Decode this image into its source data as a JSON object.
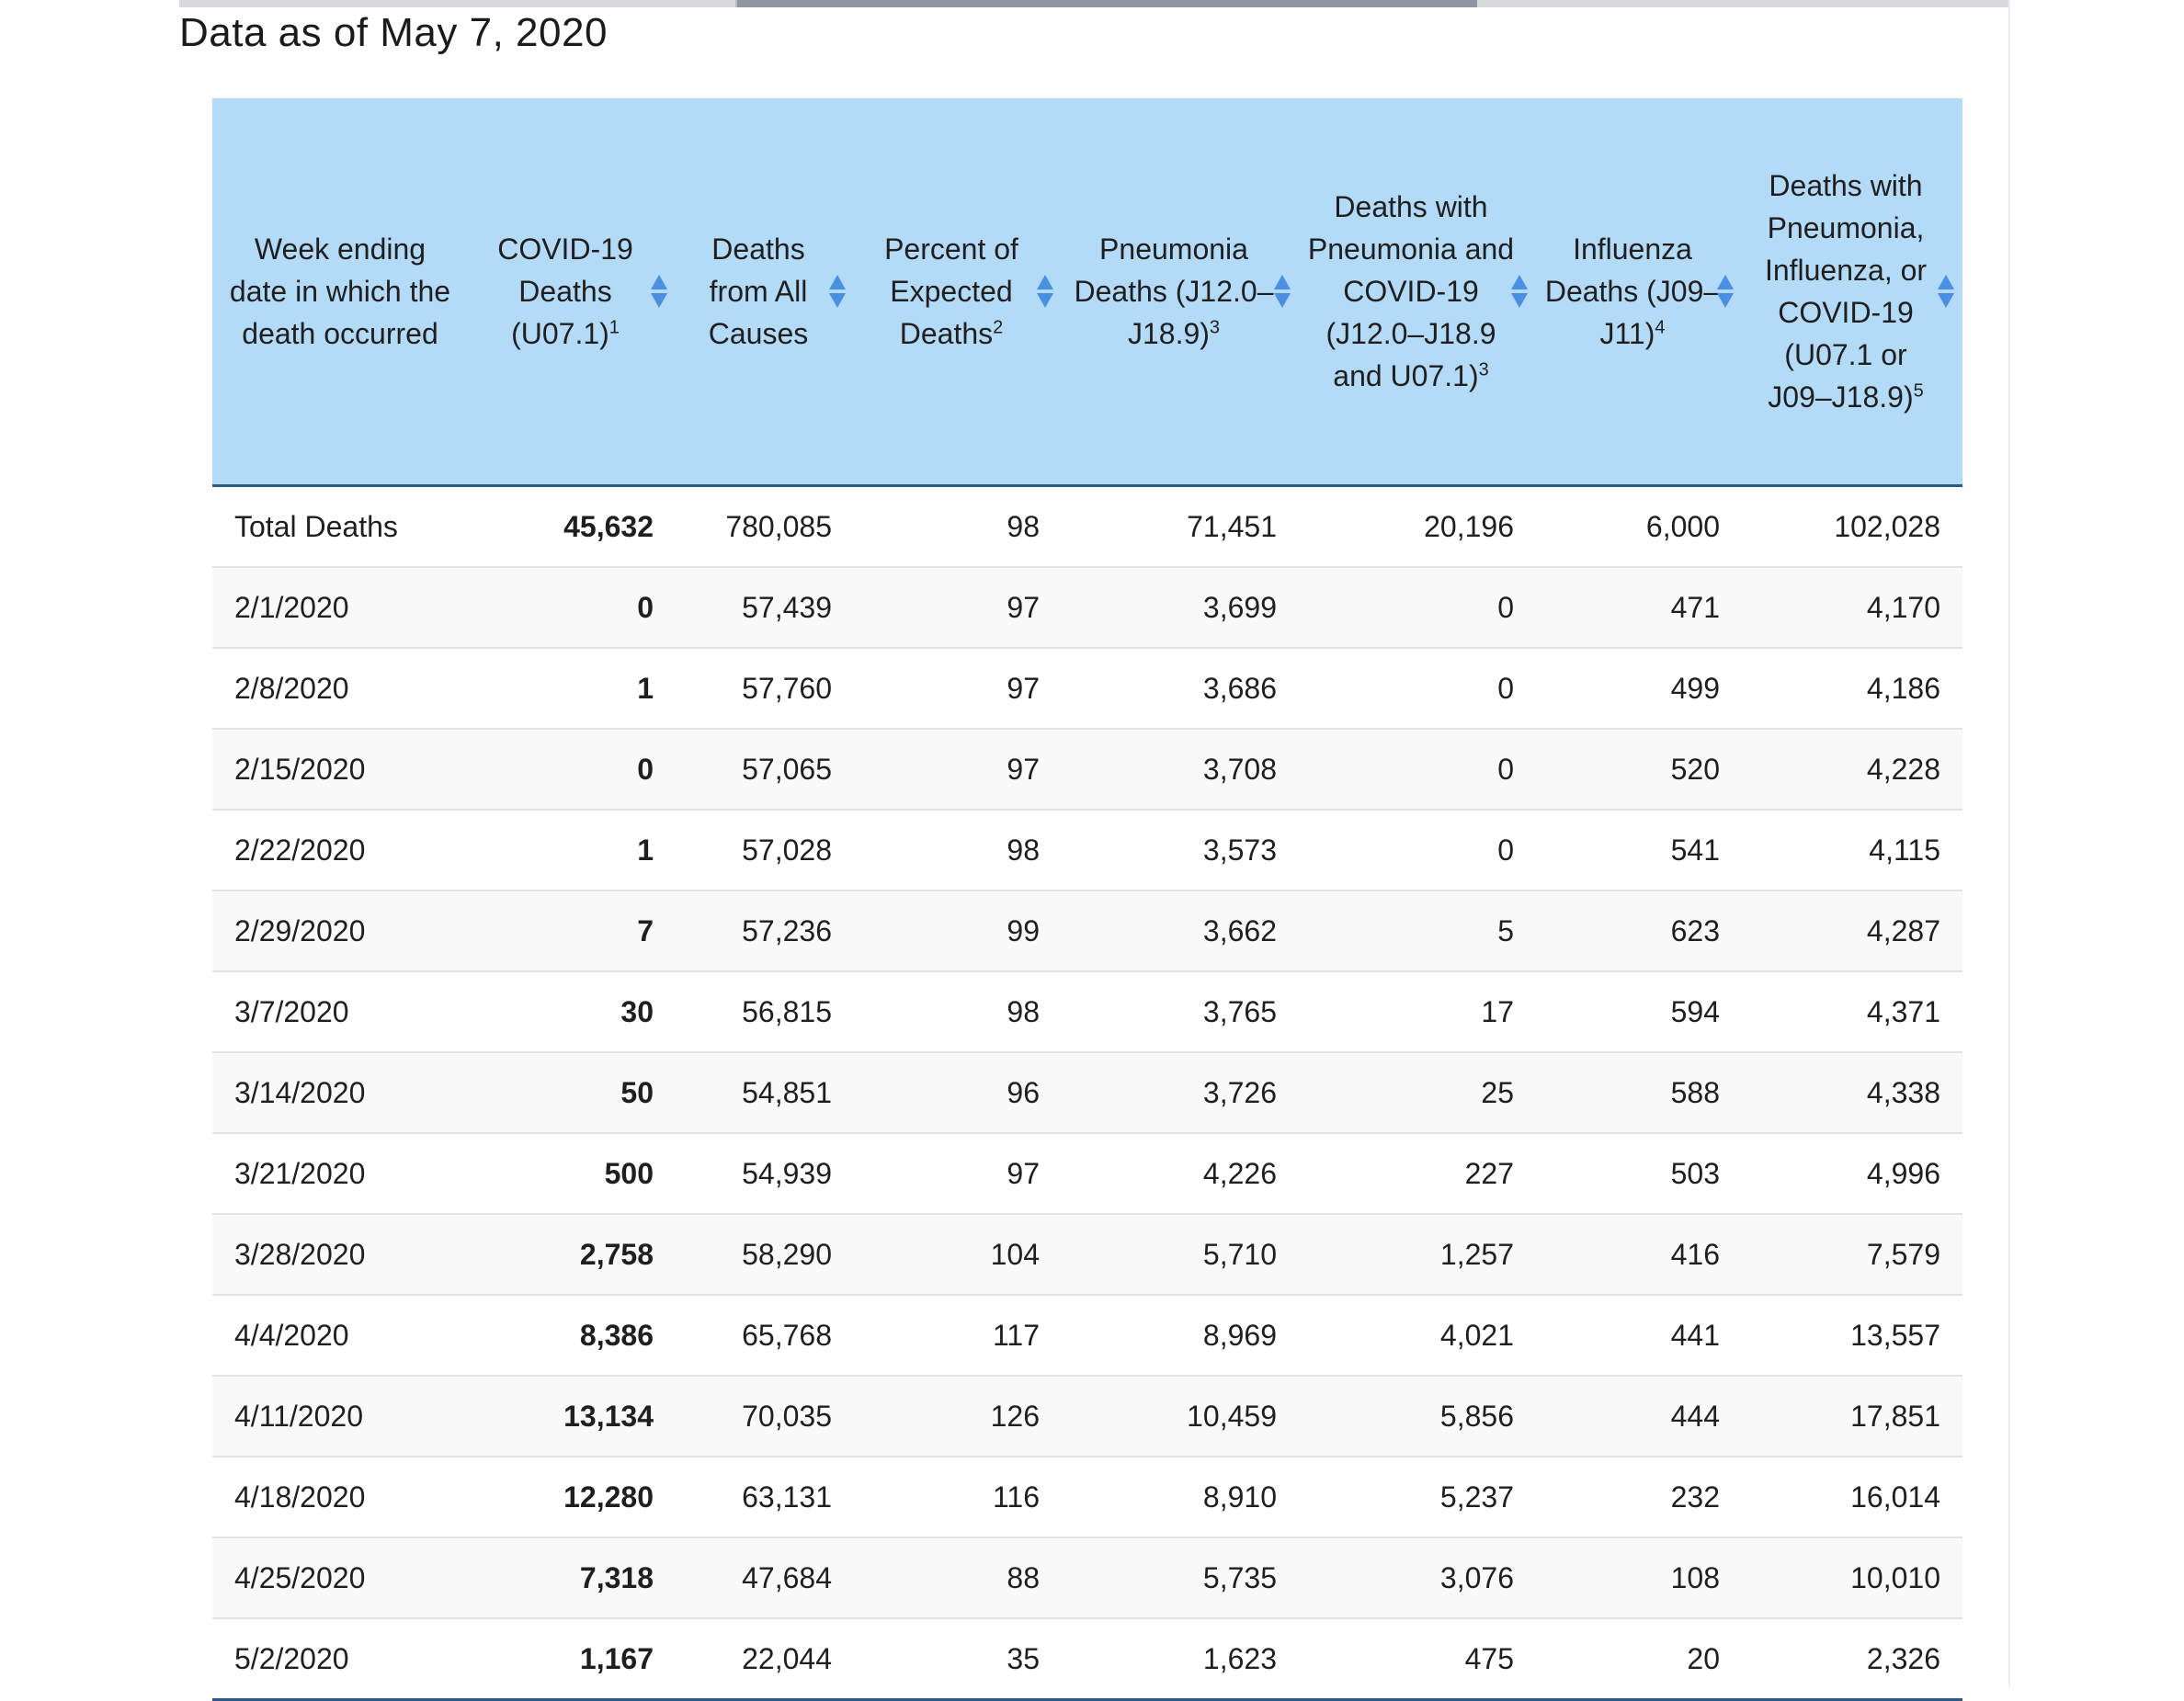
{
  "page": {
    "data_as_of": "Data as of May 7, 2020"
  },
  "table": {
    "columns": [
      {
        "label": "Week ending date in which the death occurred",
        "sup": "",
        "sortable": false
      },
      {
        "label": "COVID-19 Deaths (U07.1)",
        "sup": "1",
        "sortable": true
      },
      {
        "label": "Deaths from All Causes",
        "sup": "",
        "sortable": true
      },
      {
        "label": "Percent of Expected Deaths",
        "sup": "2",
        "sortable": true
      },
      {
        "label": "Pneumonia Deaths (J12.0–J18.9)",
        "sup": "3",
        "sortable": true
      },
      {
        "label": "Deaths with Pneumonia and COVID-19 (J12.0–J18.9 and U07.1)",
        "sup": "3",
        "sortable": true
      },
      {
        "label": "Influenza Deaths (J09–J11)",
        "sup": "4",
        "sortable": true
      },
      {
        "label": "Deaths with Pneumonia, Influenza, or COVID-19 (U07.1 or J09–J18.9)",
        "sup": "5",
        "sortable": true
      }
    ],
    "rows": [
      [
        "Total Deaths",
        "45,632",
        "780,085",
        "98",
        "71,451",
        "20,196",
        "6,000",
        "102,028"
      ],
      [
        "2/1/2020",
        "0",
        "57,439",
        "97",
        "3,699",
        "0",
        "471",
        "4,170"
      ],
      [
        "2/8/2020",
        "1",
        "57,760",
        "97",
        "3,686",
        "0",
        "499",
        "4,186"
      ],
      [
        "2/15/2020",
        "0",
        "57,065",
        "97",
        "3,708",
        "0",
        "520",
        "4,228"
      ],
      [
        "2/22/2020",
        "1",
        "57,028",
        "98",
        "3,573",
        "0",
        "541",
        "4,115"
      ],
      [
        "2/29/2020",
        "7",
        "57,236",
        "99",
        "3,662",
        "5",
        "623",
        "4,287"
      ],
      [
        "3/7/2020",
        "30",
        "56,815",
        "98",
        "3,765",
        "17",
        "594",
        "4,371"
      ],
      [
        "3/14/2020",
        "50",
        "54,851",
        "96",
        "3,726",
        "25",
        "588",
        "4,338"
      ],
      [
        "3/21/2020",
        "500",
        "54,939",
        "97",
        "4,226",
        "227",
        "503",
        "4,996"
      ],
      [
        "3/28/2020",
        "2,758",
        "58,290",
        "104",
        "5,710",
        "1,257",
        "416",
        "7,579"
      ],
      [
        "4/4/2020",
        "8,386",
        "65,768",
        "117",
        "8,969",
        "4,021",
        "441",
        "13,557"
      ],
      [
        "4/11/2020",
        "13,134",
        "70,035",
        "126",
        "10,459",
        "5,856",
        "444",
        "17,851"
      ],
      [
        "4/18/2020",
        "12,280",
        "63,131",
        "116",
        "8,910",
        "5,237",
        "232",
        "16,014"
      ],
      [
        "4/25/2020",
        "7,318",
        "47,684",
        "88",
        "5,735",
        "3,076",
        "108",
        "10,010"
      ],
      [
        "5/2/2020",
        "1,167",
        "22,044",
        "35",
        "1,623",
        "475",
        "20",
        "2,326"
      ]
    ],
    "bold_column_index": 1,
    "header_color": "#b3daf7",
    "sort_icon_color": "#4a90e2",
    "rule_color": "#2c5a86"
  }
}
